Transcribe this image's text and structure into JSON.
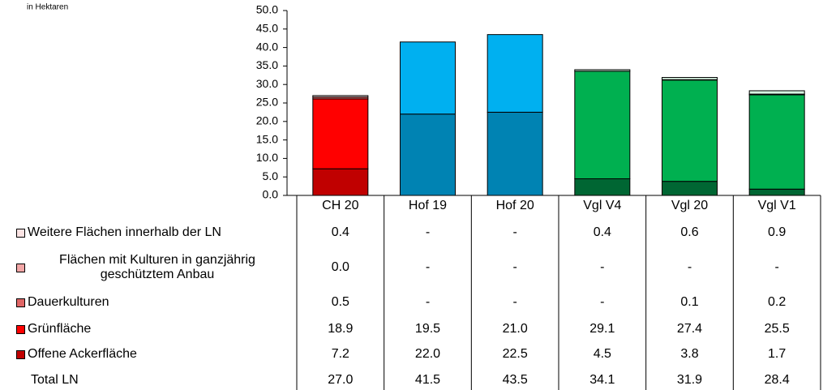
{
  "chart_data": {
    "type": "stacked_bar",
    "annotation": "in Hektaren",
    "categories": [
      "CH 20",
      "Hof 19",
      "Hof 20",
      "Vgl V4",
      "Vgl 20",
      "Vgl V1"
    ],
    "ylim": [
      0,
      50
    ],
    "yticks": [
      {
        "value": 0,
        "label": "0.0"
      },
      {
        "value": 5,
        "label": "5.0"
      },
      {
        "value": 10,
        "label": "10.0"
      },
      {
        "value": 15,
        "label": "15.0"
      },
      {
        "value": 20,
        "label": "20.0"
      },
      {
        "value": 25,
        "label": "25.0"
      },
      {
        "value": 30,
        "label": "30.0"
      },
      {
        "value": 35,
        "label": "35.0"
      },
      {
        "value": 40,
        "label": "40.0"
      },
      {
        "value": 45,
        "label": "45.0"
      },
      {
        "value": 50,
        "label": "50.0"
      }
    ],
    "series": [
      {
        "name": "Weitere Flächen innerhalb der LN",
        "colors": [
          "#fbe3e3",
          "#d6f1ff",
          "#d6f1ff",
          "#d6f5e2",
          "#d6f5e2",
          "#d6f5e2"
        ],
        "values": [
          0.4,
          null,
          null,
          0.4,
          0.6,
          0.9
        ],
        "value_labels": [
          "0.4",
          "-",
          "-",
          "0.4",
          "0.6",
          "0.9"
        ]
      },
      {
        "name": "Flächen mit Kulturen in ganzjährig geschütztem Anbau",
        "colors": [
          "#f2a6a6",
          "#99ddff",
          "#99ddff",
          "#99e0b5",
          "#99e0b5",
          "#99e0b5"
        ],
        "values": [
          0.0,
          null,
          null,
          null,
          null,
          null
        ],
        "value_labels": [
          "0.0",
          "-",
          "-",
          "-",
          "-",
          "-"
        ]
      },
      {
        "name": "Dauerkulturen",
        "colors": [
          "#e06666",
          "#66ccff",
          "#66ccff",
          "#66cc88",
          "#66cc88",
          "#66cc88"
        ],
        "values": [
          0.5,
          null,
          null,
          null,
          0.1,
          0.2
        ],
        "value_labels": [
          "0.5",
          "-",
          "-",
          "-",
          "0.1",
          "0.2"
        ]
      },
      {
        "name": "Grünfläche",
        "colors": [
          "#ff0000",
          "#00b0f0",
          "#00b0f0",
          "#00b050",
          "#00b050",
          "#00b050"
        ],
        "values": [
          18.9,
          19.5,
          21.0,
          29.1,
          27.4,
          25.5
        ],
        "value_labels": [
          "18.9",
          "19.5",
          "21.0",
          "29.1",
          "27.4",
          "25.5"
        ]
      },
      {
        "name": "Offene Ackerfläche",
        "colors": [
          "#c00000",
          "#0083b3",
          "#0083b3",
          "#006633",
          "#006633",
          "#006633"
        ],
        "values": [
          7.2,
          22.0,
          22.5,
          4.5,
          3.8,
          1.7
        ],
        "value_labels": [
          "7.2",
          "22.0",
          "22.5",
          "4.5",
          "3.8",
          "1.7"
        ]
      }
    ],
    "totals": {
      "name": "Total LN",
      "values": [
        27.0,
        41.5,
        43.5,
        34.1,
        31.9,
        28.4
      ],
      "value_labels": [
        "27.0",
        "41.5",
        "43.5",
        "34.1",
        "31.9",
        "28.4"
      ]
    }
  }
}
